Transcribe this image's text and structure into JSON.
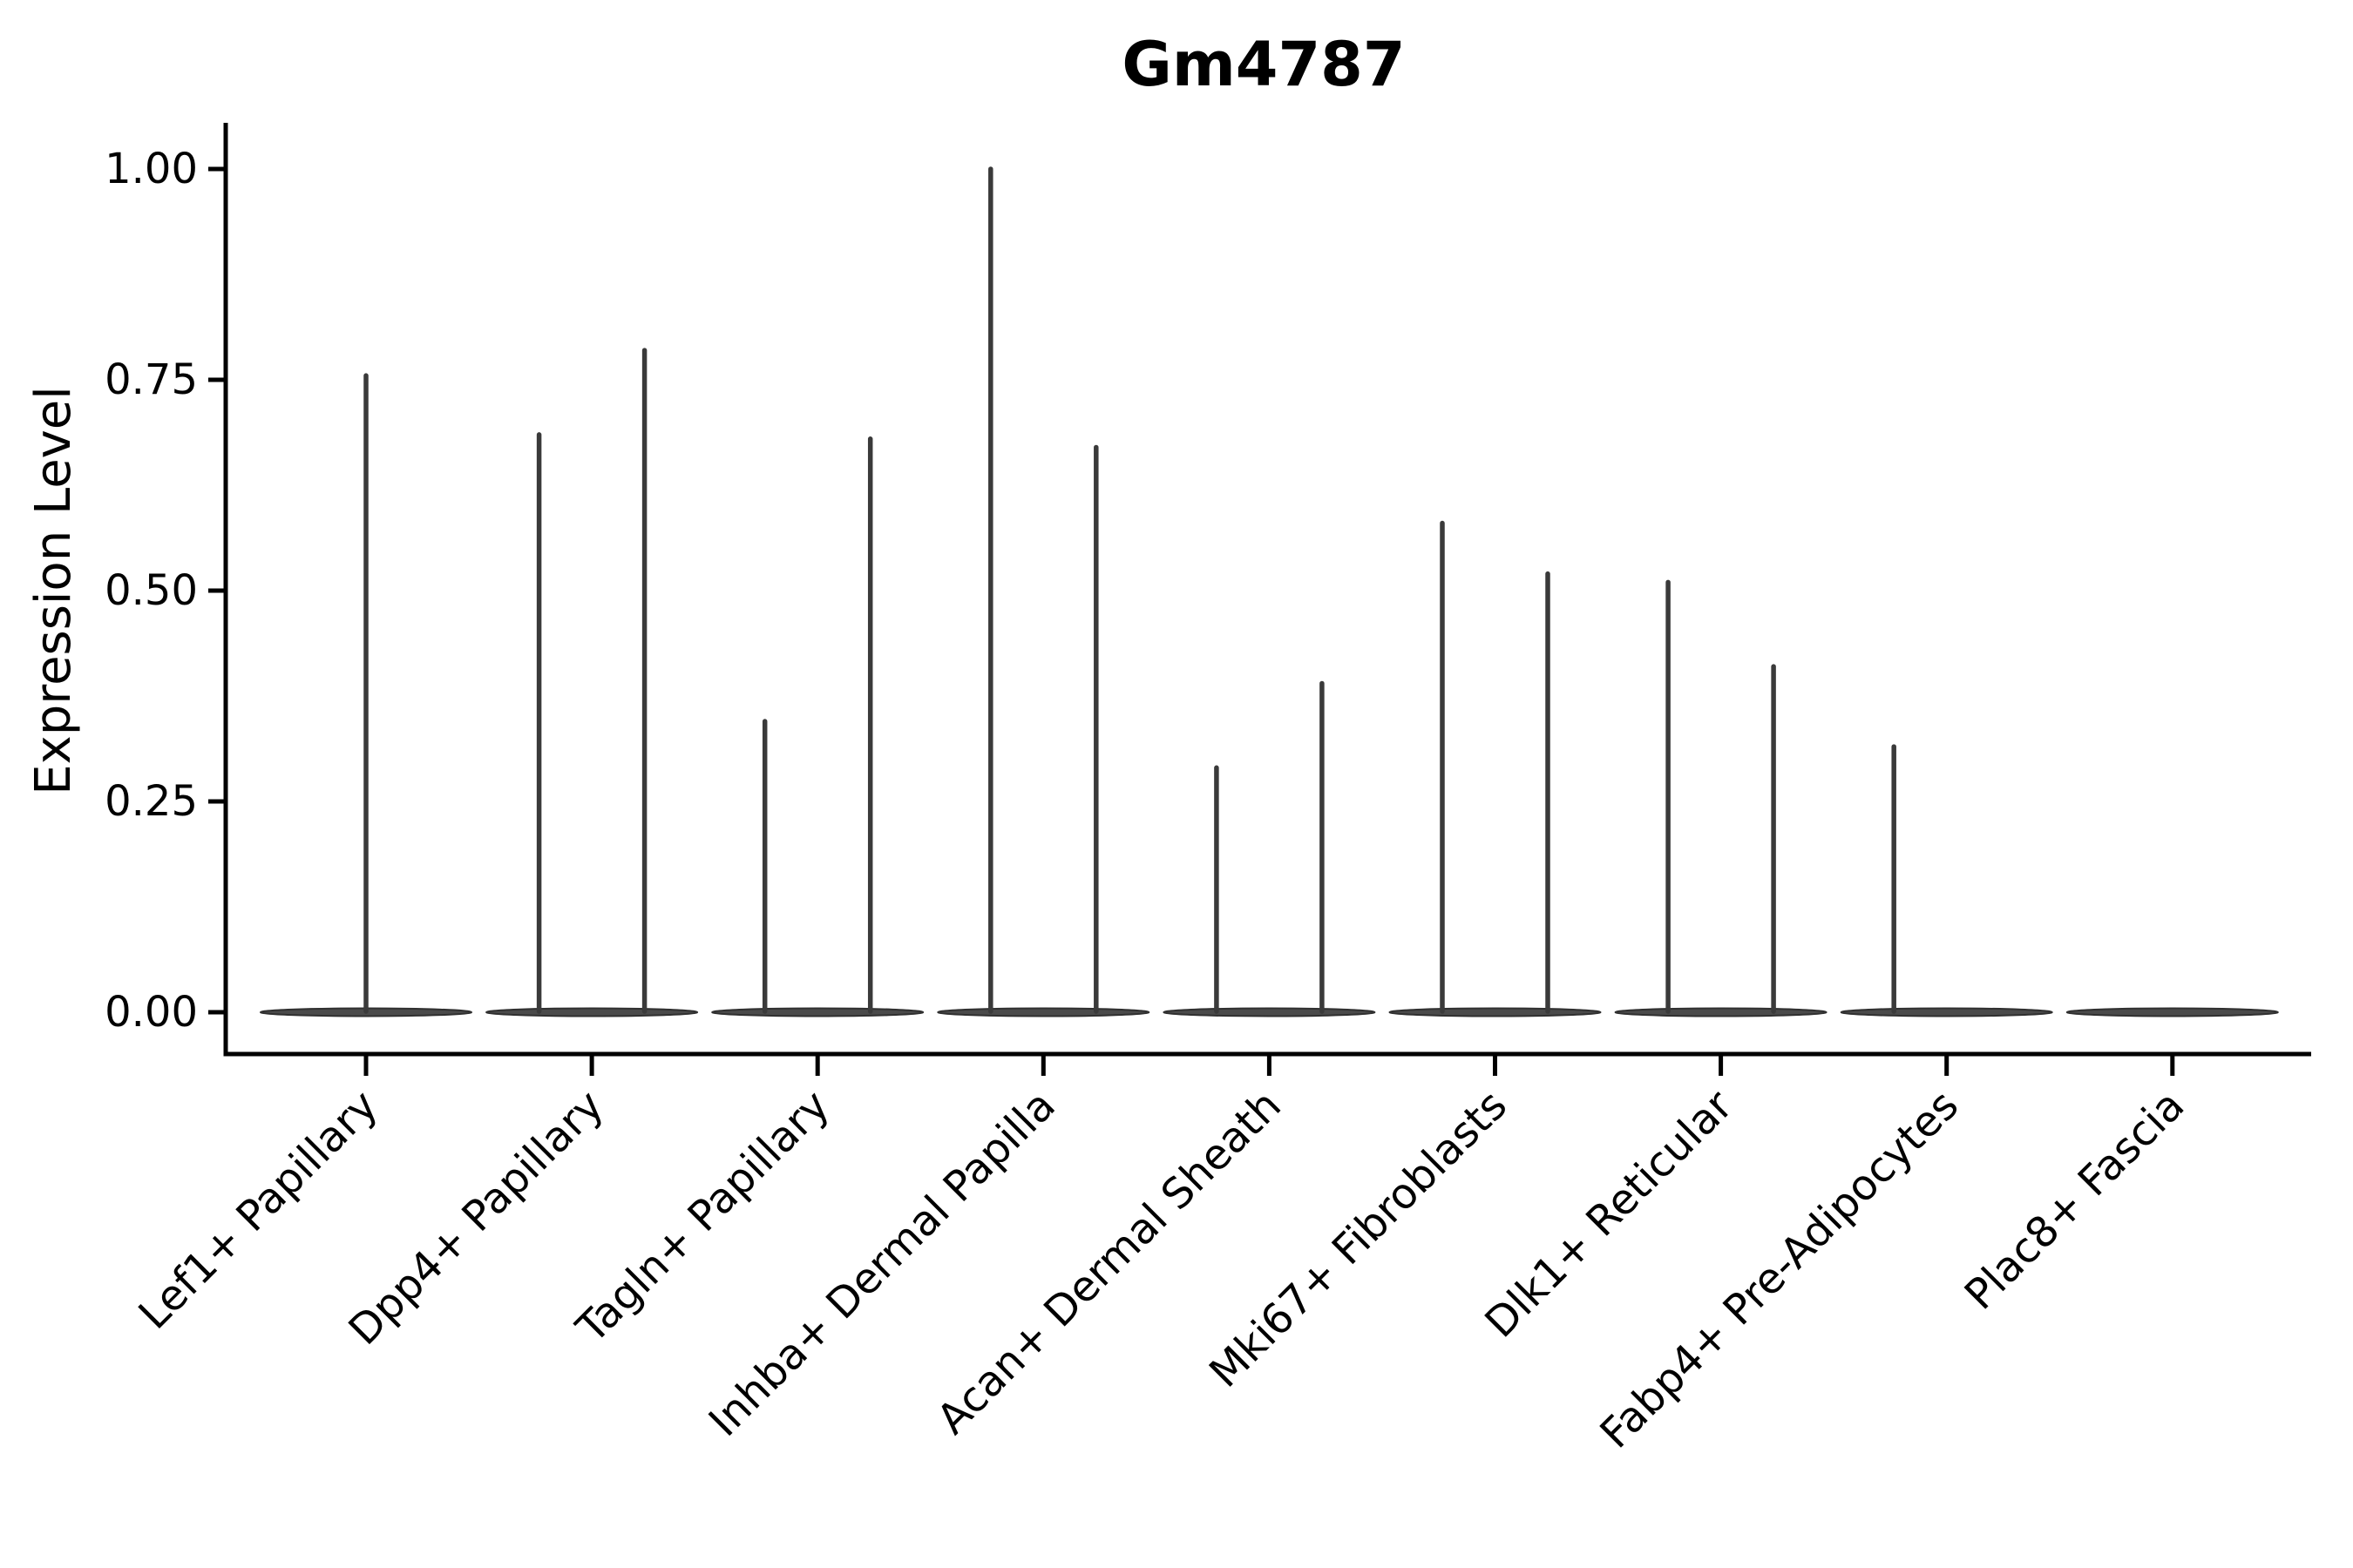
{
  "figure": {
    "title": "Gm4787",
    "background": "#ffffff"
  },
  "chart_data": {
    "type": "violin",
    "title": "Gm4787",
    "xlabel": "",
    "ylabel": "Expression Level",
    "grid": false,
    "legend": null,
    "ylim": [
      -0.05,
      1.06
    ],
    "yticks": [
      0,
      0.25,
      0.5,
      0.75,
      1.0
    ],
    "ytick_labels": [
      "0.00",
      "0.25",
      "0.50",
      "0.75",
      "1.00"
    ],
    "categories": [
      "Lef1+ Papillary",
      "Dpp4+ Papillary",
      "Tagln+ Papillary",
      "Inhba+ Dermal Papilla",
      "Acan+ Dermal Sheath",
      "Mki67+ Fibroblasts",
      "Dlk1+ Reticular",
      "Fabp4+ Pre-Adipocytes",
      "Plac8+ Fascia"
    ],
    "violins": [
      {
        "category": "Lef1+ Papillary",
        "base_at_zero": true,
        "peaks": [
          {
            "group": "center",
            "value": 0.755
          }
        ]
      },
      {
        "category": "Dpp4+ Papillary",
        "base_at_zero": true,
        "peaks": [
          {
            "group": "left",
            "value": 0.685
          },
          {
            "group": "right",
            "value": 0.785
          }
        ]
      },
      {
        "category": "Tagln+ Papillary",
        "base_at_zero": true,
        "peaks": [
          {
            "group": "left",
            "value": 0.345
          },
          {
            "group": "right",
            "value": 0.68
          }
        ]
      },
      {
        "category": "Inhba+ Dermal Papilla",
        "base_at_zero": true,
        "peaks": [
          {
            "group": "left",
            "value": 1.0
          },
          {
            "group": "right",
            "value": 0.67
          }
        ]
      },
      {
        "category": "Acan+ Dermal Sheath",
        "base_at_zero": true,
        "peaks": [
          {
            "group": "left",
            "value": 0.29
          },
          {
            "group": "right",
            "value": 0.39
          }
        ]
      },
      {
        "category": "Mki67+ Fibroblasts",
        "base_at_zero": true,
        "peaks": [
          {
            "group": "left",
            "value": 0.58
          },
          {
            "group": "right",
            "value": 0.52
          }
        ]
      },
      {
        "category": "Dlk1+ Reticular",
        "base_at_zero": true,
        "peaks": [
          {
            "group": "left",
            "value": 0.51
          },
          {
            "group": "right",
            "value": 0.41
          }
        ]
      },
      {
        "category": "Fabp4+ Pre-Adipocytes",
        "base_at_zero": true,
        "peaks": [
          {
            "group": "left",
            "value": 0.315
          }
        ]
      },
      {
        "category": "Plac8+ Fascia",
        "base_at_zero": true,
        "peaks": []
      }
    ],
    "colors": {
      "axis": "#000000",
      "text": "#000000",
      "violin_stroke": "#3a3a3a",
      "violin_base_fill": "#4a4a4a",
      "violin_base_stroke": "#303030"
    }
  }
}
